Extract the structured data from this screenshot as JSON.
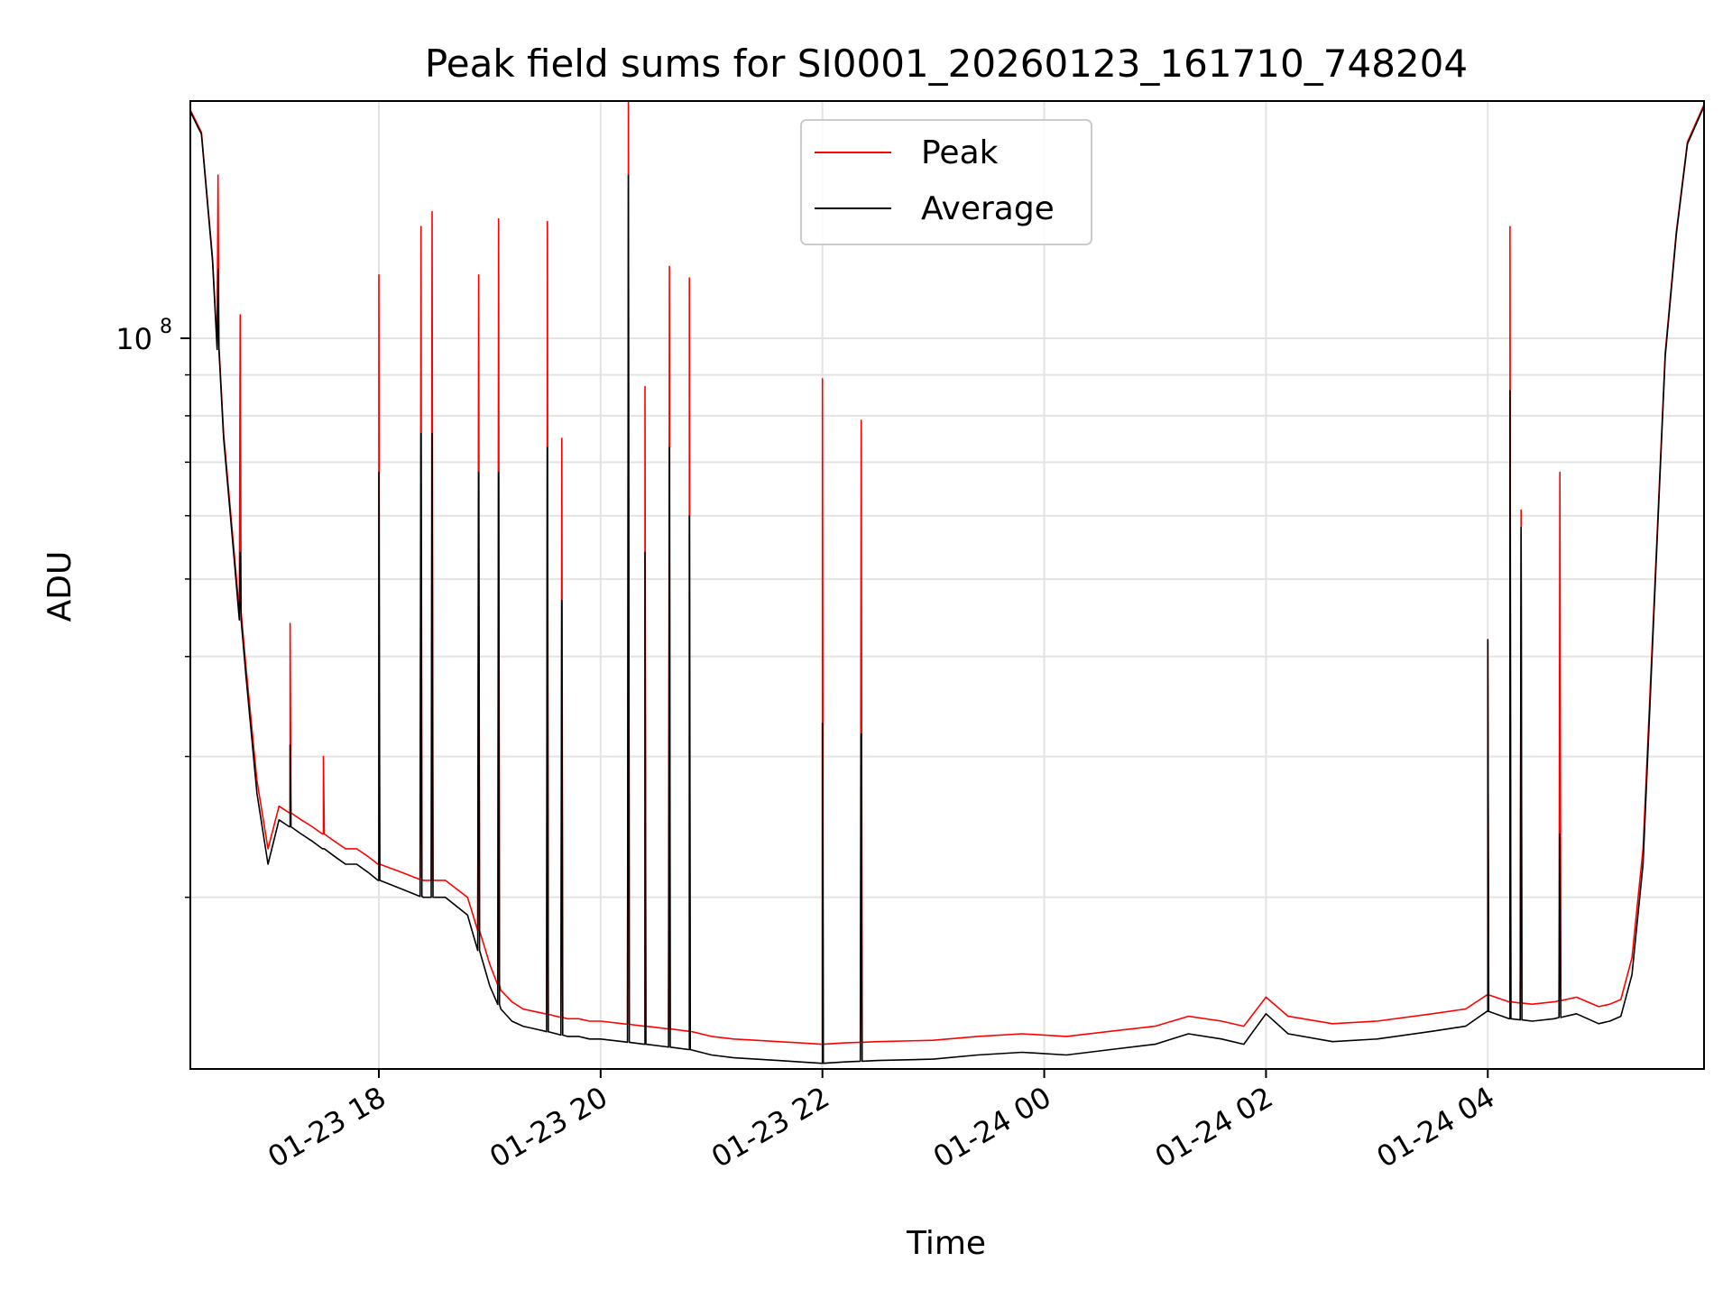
{
  "chart_data": {
    "type": "line",
    "title": "Peak field sums for SI0001_20260123_161710_748204",
    "xlabel": "Time",
    "ylabel": "ADU",
    "yscale": "log",
    "ylim": [
      12200000,
      198000000
    ],
    "xlim_hours": [
      16.3,
      29.95
    ],
    "grid": true,
    "legend_position": "upper center",
    "x_ticks": [
      {
        "hour": 18,
        "label": "01-23 18"
      },
      {
        "hour": 20,
        "label": "01-23 20"
      },
      {
        "hour": 22,
        "label": "01-23 22"
      },
      {
        "hour": 24,
        "label": "01-24 00"
      },
      {
        "hour": 26,
        "label": "01-24 02"
      },
      {
        "hour": 28,
        "label": "01-24 04"
      }
    ],
    "y_major_ticks": [
      {
        "value": 100000000,
        "base": "10",
        "exp": "8"
      }
    ],
    "y_minor_ticks": [
      20000000,
      30000000,
      40000000,
      50000000,
      60000000,
      70000000,
      80000000,
      90000000,
      200000000
    ],
    "series": [
      {
        "name": "Average",
        "color": "#000000",
        "x_hours": [
          16.3,
          16.4,
          16.5,
          16.6,
          16.7,
          16.8,
          16.9,
          17.0,
          17.1,
          17.2,
          17.3,
          17.4,
          17.5,
          17.6,
          17.7,
          17.8,
          17.9,
          18.0,
          18.2,
          18.4,
          18.6,
          18.8,
          19.0,
          19.1,
          19.2,
          19.3,
          19.4,
          19.5,
          19.6,
          19.7,
          19.8,
          19.9,
          20.0,
          20.2,
          20.4,
          20.6,
          20.8,
          21.0,
          21.2,
          21.4,
          21.6,
          21.8,
          22.0,
          22.2,
          22.5,
          23.0,
          23.4,
          23.8,
          24.2,
          24.6,
          25.0,
          25.3,
          25.6,
          25.8,
          26.0,
          26.2,
          26.6,
          27.0,
          27.5,
          27.8,
          28.0,
          28.2,
          28.4,
          28.6,
          28.8,
          29.0,
          29.1,
          29.2,
          29.3,
          29.4,
          29.5,
          29.6,
          29.7,
          29.8,
          29.95
        ],
        "values": [
          192000000,
          180000000,
          125000000,
          75000000,
          52000000,
          38000000,
          27000000,
          22000000,
          25000000,
          24500000,
          24000000,
          23500000,
          23000000,
          22500000,
          22000000,
          22000000,
          21500000,
          21000000,
          20500000,
          20000000,
          20000000,
          19000000,
          15500000,
          14500000,
          14000000,
          13800000,
          13700000,
          13600000,
          13500000,
          13400000,
          13400000,
          13300000,
          13300000,
          13200000,
          13100000,
          13000000,
          12900000,
          12700000,
          12600000,
          12550000,
          12500000,
          12450000,
          12400000,
          12450000,
          12500000,
          12550000,
          12700000,
          12800000,
          12700000,
          12900000,
          13100000,
          13500000,
          13300000,
          13100000,
          14300000,
          13500000,
          13200000,
          13300000,
          13600000,
          13800000,
          14400000,
          14100000,
          14000000,
          14100000,
          14300000,
          13900000,
          14000000,
          14200000,
          16000000,
          22000000,
          46000000,
          95000000,
          135000000,
          175000000,
          195000000
        ],
        "spikes": [
          [
            16.55,
            122000000
          ],
          [
            16.75,
            54000000
          ],
          [
            17.2,
            31000000
          ],
          [
            17.5,
            23000000
          ],
          [
            18.0,
            68000000
          ],
          [
            18.38,
            76000000
          ],
          [
            18.48,
            76000000
          ],
          [
            18.9,
            68000000
          ],
          [
            19.08,
            68000000
          ],
          [
            19.52,
            73000000
          ],
          [
            19.65,
            47000000
          ],
          [
            20.25,
            160000000
          ],
          [
            20.4,
            54000000
          ],
          [
            20.62,
            73000000
          ],
          [
            20.8,
            60000000
          ],
          [
            22.0,
            33000000
          ],
          [
            22.35,
            32000000
          ],
          [
            28.0,
            42000000
          ],
          [
            28.2,
            86000000
          ],
          [
            28.3,
            58000000
          ],
          [
            28.65,
            24000000
          ]
        ]
      },
      {
        "name": "Peak",
        "color": "#ff0000",
        "x_hours": [
          16.3,
          16.4,
          16.5,
          16.6,
          16.7,
          16.8,
          16.9,
          17.0,
          17.1,
          17.2,
          17.3,
          17.4,
          17.5,
          17.6,
          17.7,
          17.8,
          17.9,
          18.0,
          18.2,
          18.4,
          18.6,
          18.8,
          19.0,
          19.1,
          19.2,
          19.3,
          19.4,
          19.5,
          19.6,
          19.7,
          19.8,
          19.9,
          20.0,
          20.2,
          20.4,
          20.6,
          20.8,
          21.0,
          21.2,
          21.4,
          21.6,
          21.8,
          22.0,
          22.2,
          22.5,
          23.0,
          23.4,
          23.8,
          24.2,
          24.6,
          25.0,
          25.3,
          25.6,
          25.8,
          26.0,
          26.2,
          26.6,
          27.0,
          27.5,
          27.8,
          28.0,
          28.2,
          28.4,
          28.6,
          28.8,
          29.0,
          29.1,
          29.2,
          29.3,
          29.4,
          29.5,
          29.6,
          29.7,
          29.8,
          29.95
        ],
        "values": [
          193000000,
          181000000,
          126000000,
          76000000,
          53000000,
          39000000,
          28000000,
          23000000,
          26000000,
          25500000,
          25000000,
          24500000,
          24000000,
          23500000,
          23000000,
          23000000,
          22500000,
          22000000,
          21500000,
          21000000,
          21000000,
          20000000,
          16500000,
          15300000,
          14800000,
          14500000,
          14400000,
          14300000,
          14200000,
          14100000,
          14100000,
          14000000,
          14000000,
          13900000,
          13800000,
          13700000,
          13600000,
          13400000,
          13300000,
          13250000,
          13200000,
          13150000,
          13100000,
          13150000,
          13200000,
          13250000,
          13400000,
          13500000,
          13400000,
          13600000,
          13800000,
          14200000,
          14000000,
          13800000,
          15000000,
          14200000,
          13900000,
          14000000,
          14300000,
          14500000,
          15100000,
          14800000,
          14700000,
          14800000,
          15000000,
          14600000,
          14700000,
          14900000,
          16800000,
          23000000,
          47000000,
          96000000,
          136000000,
          176000000,
          196000000
        ],
        "spikes": [
          [
            16.55,
            160000000
          ],
          [
            16.75,
            107000000
          ],
          [
            17.2,
            44000000
          ],
          [
            17.5,
            30000000
          ],
          [
            18.0,
            120000000
          ],
          [
            18.38,
            138000000
          ],
          [
            18.48,
            144000000
          ],
          [
            18.9,
            120000000
          ],
          [
            19.08,
            141000000
          ],
          [
            19.52,
            140000000
          ],
          [
            19.65,
            75000000
          ],
          [
            20.25,
            198000000
          ],
          [
            20.4,
            87000000
          ],
          [
            20.62,
            123000000
          ],
          [
            20.8,
            119000000
          ],
          [
            22.0,
            89000000
          ],
          [
            22.35,
            79000000
          ],
          [
            28.0,
            42000000
          ],
          [
            28.2,
            138000000
          ],
          [
            28.3,
            61000000
          ],
          [
            28.65,
            68000000
          ]
        ]
      }
    ]
  }
}
